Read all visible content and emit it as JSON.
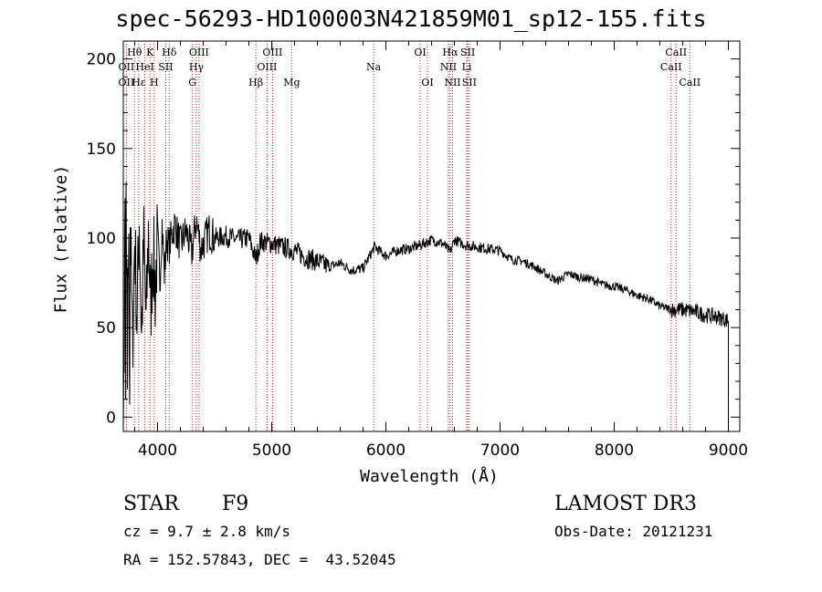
{
  "chart_data": {
    "type": "line",
    "title": "spec-56293-HD100003N421859M01_sp12-155.fits",
    "xlabel": "Wavelength (Å)",
    "ylabel": "Flux (relative)",
    "xlim": [
      3700,
      9100
    ],
    "ylim": [
      -8,
      210
    ],
    "x_ticks": [
      4000,
      5000,
      6000,
      7000,
      8000,
      9000
    ],
    "y_ticks": [
      0,
      50,
      100,
      150,
      200
    ],
    "series": [
      {
        "name": "flux",
        "x": [
          3700,
          3720,
          3740,
          3760,
          3780,
          3800,
          3820,
          3840,
          3860,
          3880,
          3900,
          3920,
          3940,
          3960,
          3980,
          4000,
          4020,
          4040,
          4060,
          4080,
          4100,
          4150,
          4200,
          4250,
          4300,
          4340,
          4380,
          4450,
          4500,
          4600,
          4700,
          4800,
          4861,
          4900,
          5000,
          5100,
          5200,
          5300,
          5400,
          5500,
          5600,
          5700,
          5800,
          5900,
          6000,
          6100,
          6200,
          6300,
          6400,
          6500,
          6563,
          6600,
          6700,
          6800,
          6900,
          7000,
          7100,
          7200,
          7300,
          7400,
          7500,
          7600,
          7700,
          7800,
          7900,
          8000,
          8100,
          8200,
          8300,
          8400,
          8500,
          8600,
          8700,
          8800,
          8900,
          9000
        ],
        "y": [
          20,
          135,
          60,
          110,
          40,
          100,
          55,
          112,
          45,
          98,
          50,
          105,
          60,
          95,
          70,
          102,
          75,
          108,
          80,
          100,
          95,
          108,
          96,
          104,
          92,
          110,
          94,
          104,
          100,
          101,
          99,
          100,
          88,
          98,
          97,
          95,
          93,
          89,
          87,
          84,
          86,
          82,
          83,
          95,
          90,
          93,
          94,
          96,
          99,
          97,
          92,
          99,
          96,
          95,
          94,
          93,
          88,
          87,
          84,
          80,
          76,
          80,
          78,
          77,
          74,
          73,
          71,
          68,
          66,
          62,
          60,
          60,
          59,
          57,
          56,
          54
        ]
      }
    ],
    "line_labels": [
      {
        "text": "Hθ",
        "x": 3798,
        "row": 0
      },
      {
        "text": "K",
        "x": 3934,
        "row": 0
      },
      {
        "text": "Hδ",
        "x": 4102,
        "row": 0
      },
      {
        "text": "OIII",
        "x": 4363,
        "row": 0
      },
      {
        "text": "OIII",
        "x": 5007,
        "row": 0
      },
      {
        "text": "OI",
        "x": 6300,
        "row": 0
      },
      {
        "text": "Hα",
        "x": 6563,
        "row": 0
      },
      {
        "text": "SII",
        "x": 6717,
        "row": 0
      },
      {
        "text": "CaII",
        "x": 8542,
        "row": 0
      },
      {
        "text": "OII",
        "x": 3727,
        "row": 1
      },
      {
        "text": "HeI",
        "x": 3889,
        "row": 1
      },
      {
        "text": "SII",
        "x": 4072,
        "row": 1
      },
      {
        "text": "Hγ",
        "x": 4340,
        "row": 1
      },
      {
        "text": "OIII",
        "x": 4959,
        "row": 1
      },
      {
        "text": "Na",
        "x": 5893,
        "row": 1
      },
      {
        "text": "NII",
        "x": 6548,
        "row": 1
      },
      {
        "text": "Li",
        "x": 6708,
        "row": 1
      },
      {
        "text": "CaII",
        "x": 8498,
        "row": 1
      },
      {
        "text": "OII",
        "x": 3727,
        "row": 2
      },
      {
        "text": "Hε",
        "x": 3835,
        "row": 2
      },
      {
        "text": "H",
        "x": 3970,
        "row": 2
      },
      {
        "text": "G",
        "x": 4305,
        "row": 2
      },
      {
        "text": "Hβ",
        "x": 4861,
        "row": 2
      },
      {
        "text": "Mg",
        "x": 5175,
        "row": 2
      },
      {
        "text": "OI",
        "x": 6364,
        "row": 2
      },
      {
        "text": "NII",
        "x": 6584,
        "row": 2
      },
      {
        "text": "SII",
        "x": 6731,
        "row": 2
      },
      {
        "text": "CaII",
        "x": 8662,
        "row": 2
      }
    ],
    "line_wavelengths": [
      3727,
      3798,
      3835,
      3889,
      3934,
      3970,
      4072,
      4102,
      4305,
      4340,
      4363,
      4861,
      4959,
      5007,
      5175,
      5893,
      6300,
      6364,
      6548,
      6563,
      6584,
      6708,
      6717,
      6731,
      8498,
      8542,
      8662
    ]
  },
  "info": {
    "class": "STAR",
    "subclass": "F9",
    "cz": "cz = 9.7 ± 2.8 km/s",
    "coords": "RA = 152.57843, DEC =  43.52045",
    "survey": "LAMOST DR3",
    "obs_date": "Obs-Date: 20121231"
  },
  "colors": {
    "line_marker": "#b22222",
    "axis": "#000000"
  }
}
